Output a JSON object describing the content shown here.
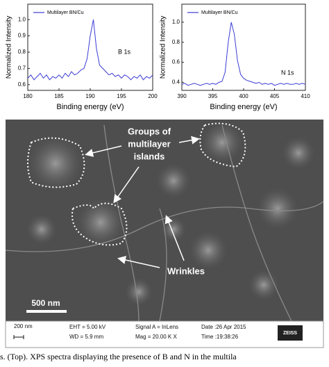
{
  "chart_data": [
    {
      "type": "line",
      "xlabel": "Binding energy (eV)",
      "ylabel": "Normalized Intensity",
      "annotation": "B 1s",
      "x": [
        180,
        180.5,
        181,
        181.5,
        182,
        182.5,
        183,
        183.5,
        184,
        184.5,
        185,
        185.5,
        186,
        186.5,
        187,
        187.5,
        188,
        188.5,
        189,
        189.5,
        190,
        190.5,
        191,
        191.5,
        192,
        192.5,
        193,
        193.5,
        194,
        194.5,
        195,
        195.5,
        196,
        196.5,
        197,
        197.5,
        198,
        198.5,
        199,
        199.5,
        200
      ],
      "series": [
        {
          "name": "Multilayer BN/Cu",
          "color": "#3b3bd6",
          "values": [
            0.64,
            0.66,
            0.63,
            0.65,
            0.67,
            0.64,
            0.66,
            0.63,
            0.65,
            0.64,
            0.66,
            0.64,
            0.67,
            0.65,
            0.68,
            0.66,
            0.67,
            0.69,
            0.7,
            0.76,
            0.9,
            1.0,
            0.82,
            0.72,
            0.7,
            0.68,
            0.66,
            0.67,
            0.65,
            0.66,
            0.64,
            0.66,
            0.65,
            0.63,
            0.65,
            0.64,
            0.66,
            0.63,
            0.65,
            0.64,
            0.66
          ]
        }
      ],
      "xlim": [
        180,
        200
      ],
      "xticks": [
        180,
        185,
        190,
        195,
        200
      ],
      "ylim": [
        0.565,
        1.095
      ],
      "yticks": [
        0.6,
        0.7,
        0.8,
        0.9,
        {
          "value": 1,
          "label": "1.0"
        }
      ]
    },
    {
      "type": "line",
      "xlabel": "Binding energy (eV)",
      "ylabel": "Normalized Intensity",
      "annotation": "N 1s",
      "x": [
        390,
        390.5,
        391,
        391.5,
        392,
        392.5,
        393,
        393.5,
        394,
        394.5,
        395,
        395.5,
        396,
        396.5,
        397,
        397.5,
        398,
        398.5,
        399,
        399.5,
        400,
        400.5,
        401,
        401.5,
        402,
        402.5,
        403,
        403.5,
        404,
        404.5,
        405,
        405.5,
        406,
        406.5,
        407,
        407.5,
        408,
        408.5,
        409,
        409.5,
        410
      ],
      "series": [
        {
          "name": "Multilayer BN/Cu",
          "color": "#3b3bd6",
          "values": [
            0.38,
            0.39,
            0.37,
            0.38,
            0.39,
            0.38,
            0.37,
            0.38,
            0.39,
            0.38,
            0.39,
            0.38,
            0.4,
            0.41,
            0.5,
            0.8,
            1.0,
            0.88,
            0.62,
            0.48,
            0.44,
            0.42,
            0.41,
            0.4,
            0.39,
            0.4,
            0.38,
            0.39,
            0.38,
            0.39,
            0.37,
            0.38,
            0.39,
            0.38,
            0.39,
            0.38,
            0.38,
            0.39,
            0.38,
            0.39,
            0.38
          ]
        }
      ],
      "xlim": [
        390,
        410
      ],
      "xticks": [
        390,
        395,
        400,
        405,
        410
      ],
      "ylim": [
        0.32,
        1.18
      ],
      "yticks": [
        0.4,
        0.6,
        0.8,
        {
          "value": 1,
          "label": "1.0"
        }
      ]
    }
  ],
  "image": {
    "islands_label": [
      "Groups of",
      "multilayer",
      "islands"
    ],
    "wrinkles_label": "Wrinkles",
    "scale_bar": "500 nm",
    "info_bar": {
      "scale": "200 nm",
      "eht": "EHT = 5.00 kV",
      "wd": "WD = 5.9 mm",
      "signal": "Signal A = InLens",
      "mag": "Mag = 20.00 K X",
      "date": "Date :26 Apr 2015",
      "time": "Time :19:38:26",
      "logo": "ZEISS"
    }
  },
  "caption": "s. (Top). XPS spectra displaying the presence of B and N in the multila"
}
